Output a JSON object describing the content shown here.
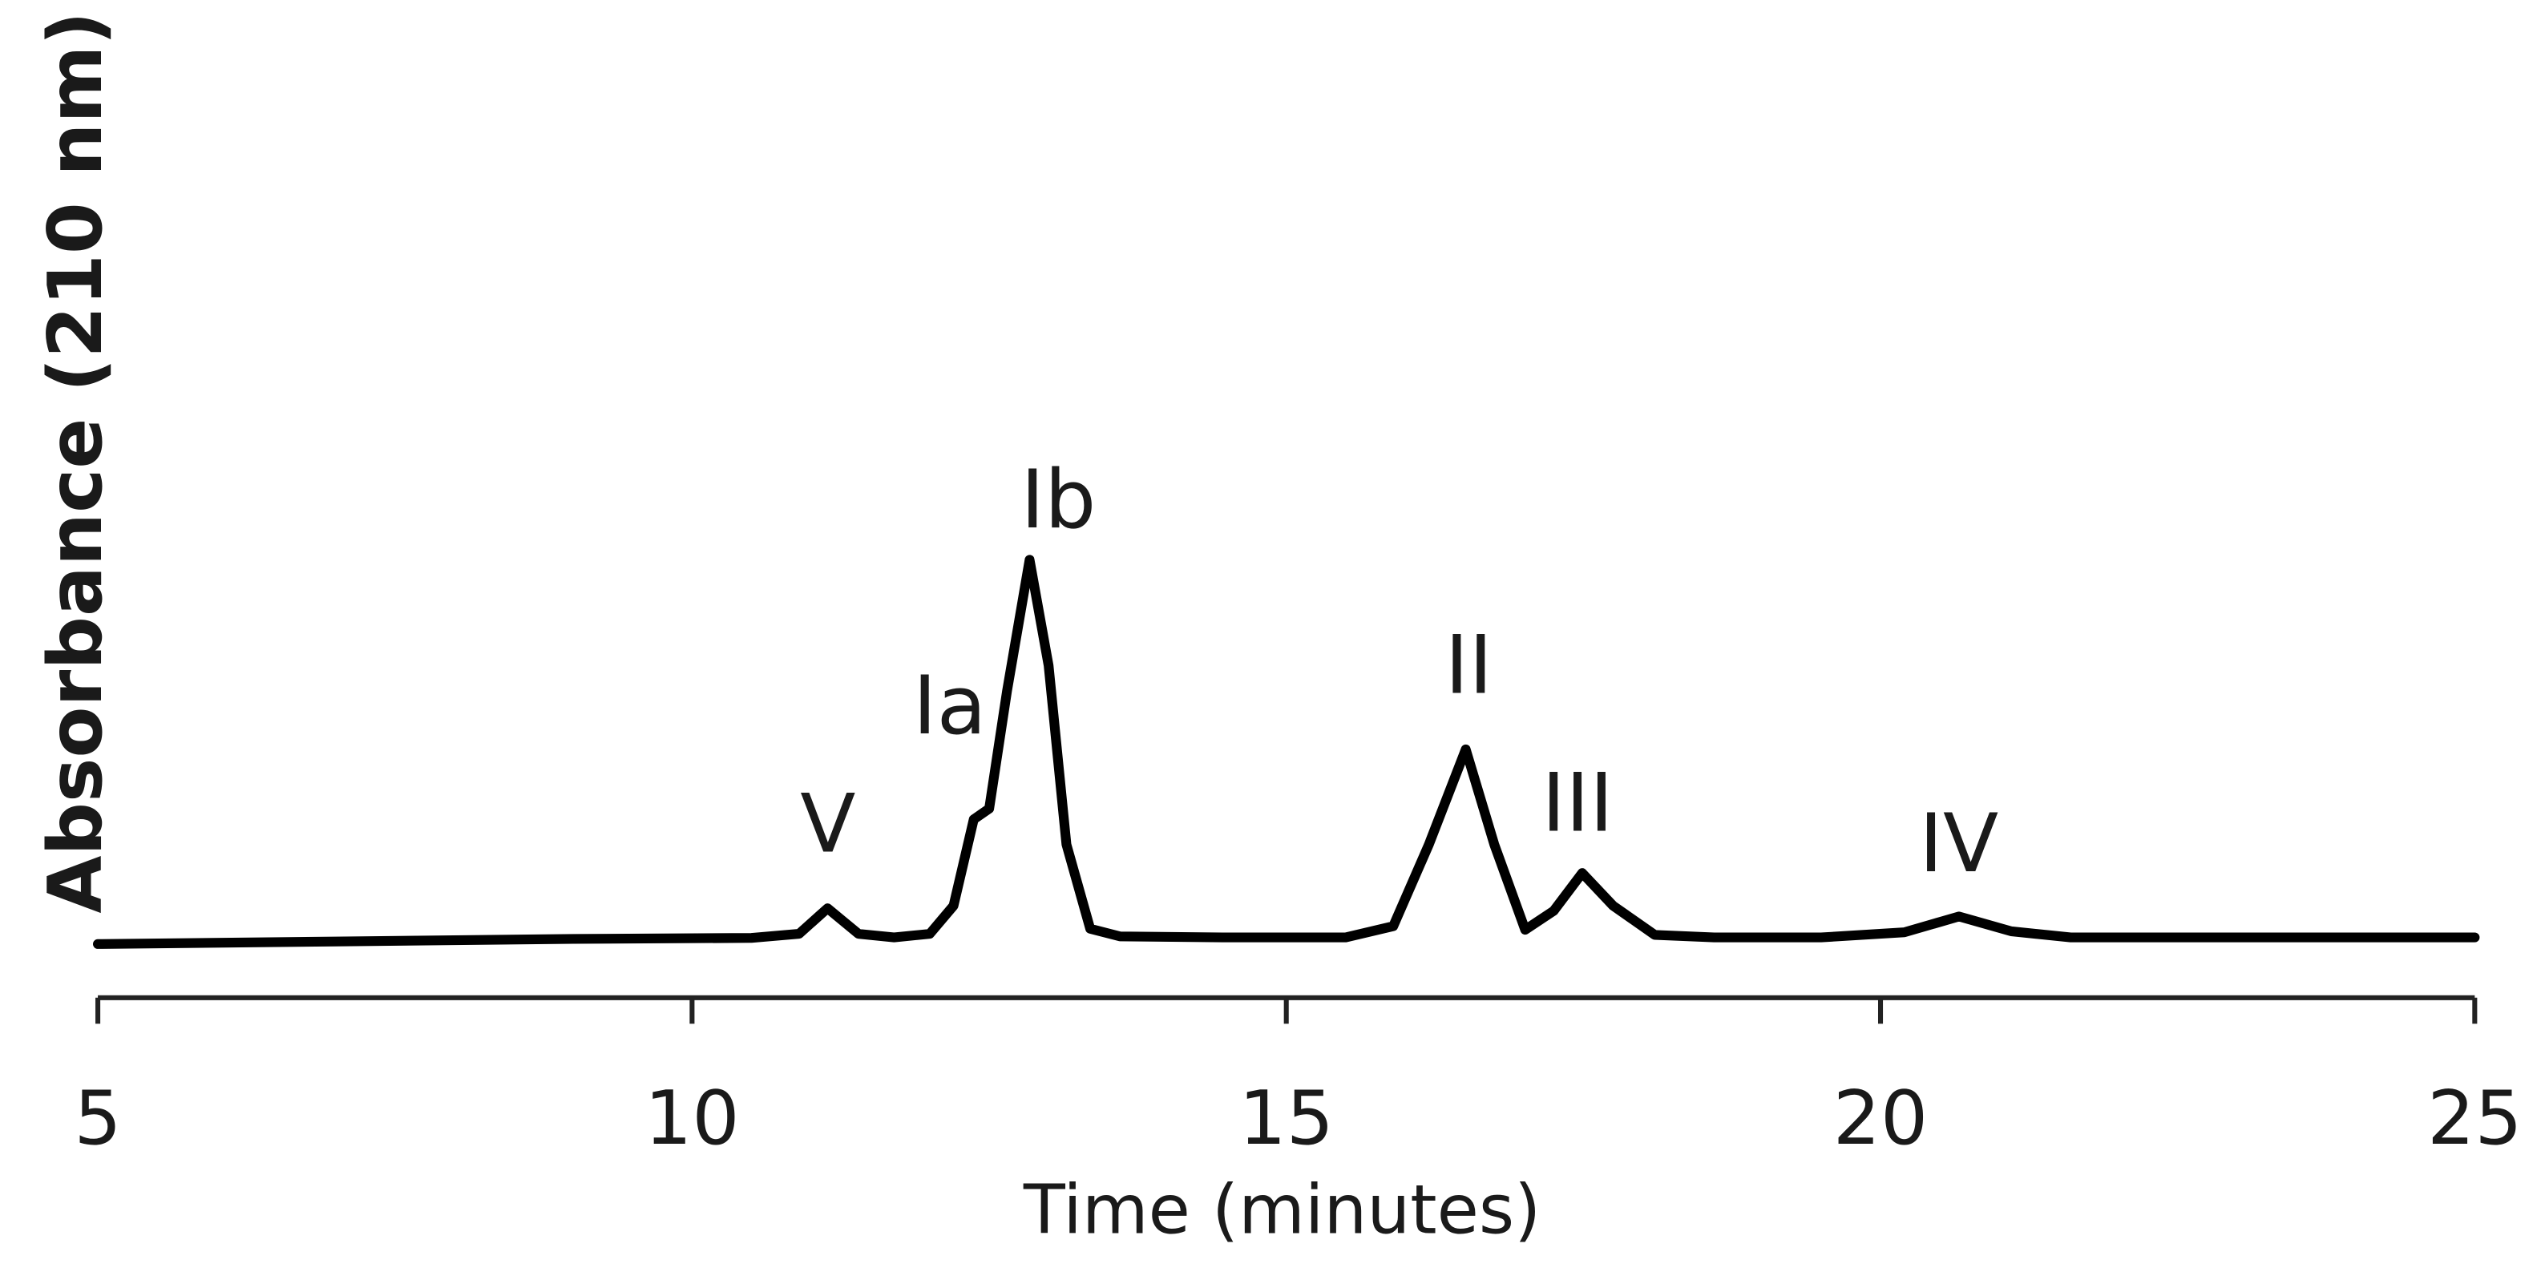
{
  "chart_data": {
    "type": "line",
    "ylabel": "Absorbance (210 nm)",
    "xlabel": "Time (minutes)",
    "xlim": [
      5,
      25
    ],
    "xticks": [
      5,
      10,
      15,
      20,
      25
    ],
    "ylim": [
      0,
      100
    ],
    "annotations": [
      "V",
      "Ia",
      "Ib",
      "II",
      "III",
      "IV"
    ],
    "series": [
      {
        "color": "#000000",
        "x": [
          5,
          7,
          9,
          10.5,
          10.9,
          11.14,
          11.4,
          11.7,
          12.0,
          12.2,
          12.37,
          12.5,
          12.65,
          12.84,
          13.0,
          13.15,
          13.35,
          13.6,
          14.5,
          15.5,
          15.9,
          16.2,
          16.51,
          16.75,
          17.01,
          17.25,
          17.49,
          17.75,
          18.1,
          18.6,
          19.5,
          20.2,
          20.66,
          21.1,
          21.6,
          23,
          25
        ],
        "values": [
          10.5,
          11,
          11.5,
          11.7,
          12.5,
          17.5,
          12.5,
          11.8,
          12.5,
          18,
          34.9,
          37,
          60,
          85.7,
          65,
          30,
          13.5,
          12,
          11.8,
          11.8,
          14,
          30,
          48.6,
          30,
          13.3,
          17,
          24.4,
          18,
          12.3,
          11.8,
          11.8,
          12.8,
          15.9,
          13,
          11.8,
          11.8,
          11.8
        ]
      }
    ]
  }
}
